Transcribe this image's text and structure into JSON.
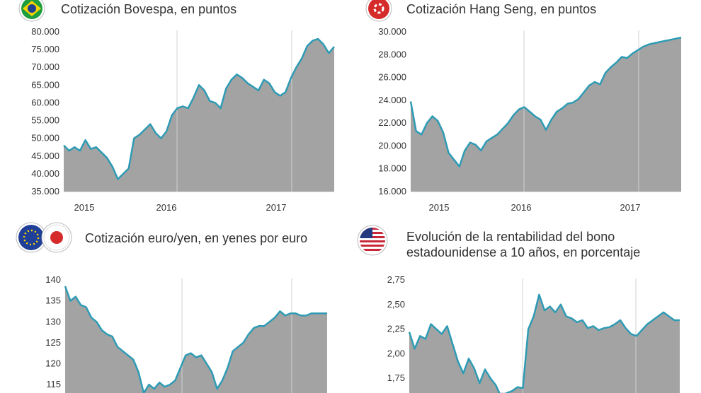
{
  "chart_data": [
    {
      "type": "area",
      "title": "Cotización Bovespa, en puntos",
      "x_tick_labels": [
        "2015",
        "2016",
        "2017"
      ],
      "x": [
        0,
        0.02,
        0.04,
        0.06,
        0.08,
        0.1,
        0.12,
        0.14,
        0.16,
        0.18,
        0.2,
        0.22,
        0.24,
        0.26,
        0.28,
        0.3,
        0.32,
        0.34,
        0.36,
        0.38,
        0.4,
        0.42,
        0.44,
        0.46,
        0.48,
        0.5,
        0.52,
        0.54,
        0.56,
        0.58,
        0.6,
        0.62,
        0.64,
        0.66,
        0.68,
        0.7,
        0.72,
        0.74,
        0.76,
        0.78,
        0.8,
        0.82,
        0.84,
        0.86,
        0.88,
        0.9,
        0.92,
        0.94,
        0.96,
        0.98,
        1.0
      ],
      "values": [
        48000,
        46500,
        47500,
        46500,
        49500,
        47000,
        47500,
        46000,
        44500,
        42000,
        38500,
        40000,
        41500,
        50000,
        51000,
        52500,
        54000,
        51500,
        50000,
        52000,
        56500,
        58500,
        59000,
        58500,
        61500,
        65000,
        63500,
        60500,
        60000,
        58500,
        64000,
        66500,
        68000,
        67000,
        65500,
        64500,
        63500,
        66500,
        65500,
        63000,
        62000,
        63000,
        67000,
        70000,
        72500,
        76000,
        77500,
        78000,
        76500,
        74000,
        75800
      ],
      "ylim": [
        35000,
        80000
      ],
      "y_ticks": [
        "35.000",
        "40.000",
        "45.000",
        "50.000",
        "55.000",
        "60.000",
        "65.000",
        "70.000",
        "75.000",
        "80.000"
      ],
      "grid": "x-only"
    },
    {
      "type": "area",
      "title": "Cotización Hang Seng, en puntos",
      "x_tick_labels": [
        "2015",
        "2016",
        "2017"
      ],
      "x": [
        0,
        0.02,
        0.04,
        0.06,
        0.08,
        0.1,
        0.12,
        0.14,
        0.16,
        0.18,
        0.2,
        0.22,
        0.24,
        0.26,
        0.28,
        0.3,
        0.32,
        0.34,
        0.36,
        0.38,
        0.4,
        0.42,
        0.44,
        0.46,
        0.48,
        0.5,
        0.52,
        0.54,
        0.56,
        0.58,
        0.6,
        0.62,
        0.64,
        0.66,
        0.68,
        0.7,
        0.72,
        0.74,
        0.76,
        0.78,
        0.8,
        0.82,
        0.84,
        0.86,
        0.88,
        0.9,
        0.92,
        0.94,
        0.96,
        0.98,
        1.0
      ],
      "values": [
        23900,
        21300,
        21000,
        22000,
        22600,
        22200,
        21200,
        19400,
        18800,
        18200,
        19600,
        20300,
        20100,
        19600,
        20400,
        20700,
        21000,
        21500,
        22000,
        22700,
        23200,
        23400,
        23000,
        22600,
        22300,
        21400,
        22300,
        23000,
        23300,
        23700,
        23800,
        24100,
        24700,
        25300,
        25600,
        25400,
        26400,
        26900,
        27300,
        27800,
        27700,
        28100,
        28400,
        28700,
        28900,
        29000,
        29100,
        29200,
        29300,
        29400,
        29500
      ],
      "ylim": [
        16000,
        30000
      ],
      "y_ticks": [
        "16.000",
        "18.000",
        "20.000",
        "22.000",
        "24.000",
        "26.000",
        "28.000",
        "30.000"
      ],
      "grid": "x-only"
    },
    {
      "type": "area",
      "title": "Cotización euro/yen, en yenes por euro",
      "x_tick_labels": [],
      "x": [
        0,
        0.02,
        0.04,
        0.06,
        0.08,
        0.1,
        0.12,
        0.14,
        0.16,
        0.18,
        0.2,
        0.22,
        0.24,
        0.26,
        0.28,
        0.3,
        0.32,
        0.34,
        0.36,
        0.38,
        0.4,
        0.42,
        0.44,
        0.46,
        0.48,
        0.5,
        0.52,
        0.54,
        0.56,
        0.58,
        0.6,
        0.62,
        0.64,
        0.66,
        0.68,
        0.7,
        0.72,
        0.74,
        0.76,
        0.78,
        0.8,
        0.82,
        0.84,
        0.86,
        0.88,
        0.9,
        0.92,
        0.94,
        0.96,
        0.98,
        1.0
      ],
      "values": [
        138.5,
        135,
        136,
        134,
        133.5,
        131,
        130,
        128,
        127,
        126.5,
        124,
        123,
        122,
        121,
        118,
        113,
        115,
        114,
        115.5,
        114.5,
        115,
        116,
        119,
        122,
        122.5,
        121.5,
        122,
        120,
        118,
        114,
        116,
        119,
        123,
        124,
        125,
        127,
        128.5,
        129,
        129,
        130,
        131,
        132.5,
        131.5,
        132,
        132,
        131.5,
        131.5,
        132,
        132,
        132,
        132
      ],
      "ylim": [
        113,
        140
      ],
      "y_ticks": [
        "115",
        "120",
        "125",
        "130",
        "135",
        "140"
      ],
      "grid": "x-only"
    },
    {
      "type": "area",
      "title": "Evolución de la rentabilidad del bono estadounidense a 10 años, en porcentaje",
      "x_tick_labels": [],
      "x": [
        0,
        0.02,
        0.04,
        0.06,
        0.08,
        0.1,
        0.12,
        0.14,
        0.16,
        0.18,
        0.2,
        0.22,
        0.24,
        0.26,
        0.28,
        0.3,
        0.32,
        0.34,
        0.36,
        0.38,
        0.4,
        0.42,
        0.44,
        0.46,
        0.48,
        0.5,
        0.52,
        0.54,
        0.56,
        0.58,
        0.6,
        0.62,
        0.64,
        0.66,
        0.68,
        0.7,
        0.72,
        0.74,
        0.76,
        0.78,
        0.8,
        0.82,
        0.84,
        0.86,
        0.88,
        0.9,
        0.92,
        0.94,
        0.96,
        0.98,
        1.0
      ],
      "values": [
        2.22,
        2.05,
        2.18,
        2.15,
        2.3,
        2.25,
        2.2,
        2.28,
        2.1,
        1.92,
        1.8,
        1.95,
        1.85,
        1.7,
        1.84,
        1.75,
        1.68,
        1.56,
        1.6,
        1.62,
        1.66,
        1.65,
        2.25,
        2.38,
        2.6,
        2.44,
        2.48,
        2.42,
        2.5,
        2.38,
        2.36,
        2.32,
        2.34,
        2.26,
        2.28,
        2.24,
        2.26,
        2.27,
        2.3,
        2.34,
        2.26,
        2.2,
        2.18,
        2.24,
        2.3,
        2.34,
        2.38,
        2.42,
        2.38,
        2.34,
        2.34
      ],
      "ylim": [
        1.6,
        2.75
      ],
      "y_ticks": [
        "1,75",
        "2,00",
        "2,25",
        "2,50",
        "2,75"
      ],
      "grid": "x-only"
    }
  ],
  "colors": {
    "fill": "#a3a3a3",
    "line": "#2e9bb4",
    "grid": "#c8c8c8"
  },
  "icons": [
    "brazil-flag-icon",
    "hong-kong-flag-icon",
    "eu-flag-icon",
    "japan-flag-icon",
    "usa-flag-icon"
  ]
}
